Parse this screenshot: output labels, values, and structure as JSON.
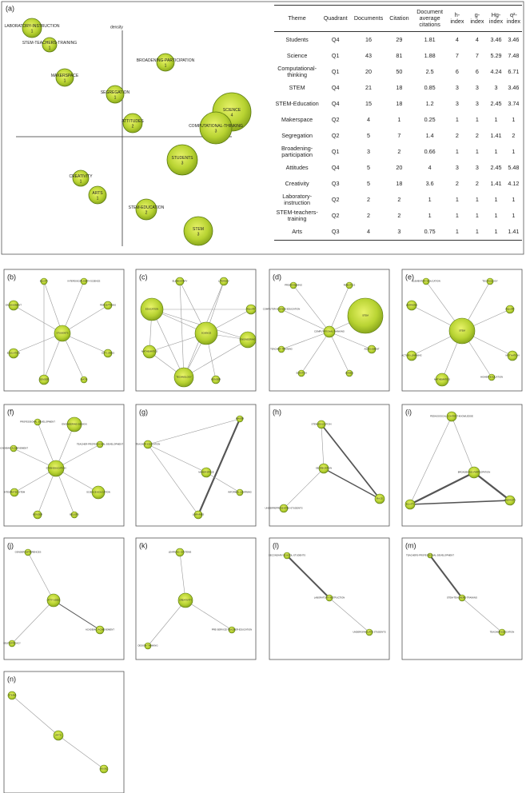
{
  "strategic_diagram": {
    "panel": "(a)",
    "axis_label": "density",
    "bubbles": [
      {
        "label": "LABORATORY-INSTRUCTION",
        "value": "1"
      },
      {
        "label": "STEM-TEACHERS-TRAINING",
        "value": "1"
      },
      {
        "label": "BROADENING-PARTICIPATION",
        "value": "1"
      },
      {
        "label": "MAKERSPACE",
        "value": "1"
      },
      {
        "label": "SEGREGATION",
        "value": "1"
      },
      {
        "label": "SCIENCE",
        "value": "4"
      },
      {
        "label": "COMPUTATIONAL-THINKING",
        "value": "3"
      },
      {
        "label": "ATTITUDES",
        "value": "2"
      },
      {
        "label": "STUDENTS",
        "value": "3"
      },
      {
        "label": "CREATIVITY",
        "value": "1"
      },
      {
        "label": "ARTS",
        "value": "1"
      },
      {
        "label": "STEM-EDUCATION",
        "value": "2"
      },
      {
        "label": "STEM",
        "value": "3"
      }
    ]
  },
  "table": {
    "header": [
      "Theme",
      "Quadrant",
      "Documents",
      "Citation",
      "Document average citations",
      "h-index",
      "g-index",
      "Hg-index",
      "q²-index"
    ],
    "rows": [
      [
        "Students",
        "Q4",
        16,
        29,
        1.81,
        4,
        4,
        3.46,
        3.46
      ],
      [
        "Science",
        "Q1",
        43,
        81,
        1.88,
        7,
        7,
        5.29,
        7.48
      ],
      [
        "Computational-thinking",
        "Q1",
        20,
        50,
        2.5,
        6,
        6,
        4.24,
        6.71
      ],
      [
        "STEM",
        "Q4",
        21,
        18,
        0.85,
        3,
        3,
        3,
        3.46
      ],
      [
        "STEM-Education",
        "Q4",
        15,
        18,
        1.2,
        3,
        3,
        2.45,
        3.74
      ],
      [
        "Makerspace",
        "Q2",
        4,
        1,
        0.25,
        1,
        1,
        1,
        1
      ],
      [
        "Segregation",
        "Q2",
        5,
        7,
        1.4,
        2,
        2,
        1.41,
        2
      ],
      [
        "Broadening-participation",
        "Q1",
        3,
        2,
        0.66,
        1,
        1,
        1,
        1
      ],
      [
        "Attitudes",
        "Q4",
        5,
        20,
        4,
        3,
        3,
        2.45,
        5.48
      ],
      [
        "Creativity",
        "Q3",
        5,
        18,
        3.6,
        2,
        2,
        1.41,
        4.12
      ],
      [
        "Laboratory-instruction",
        "Q2",
        2,
        2,
        1,
        1,
        1,
        1,
        1
      ],
      [
        "STEM-teachers-training",
        "Q2",
        2,
        2,
        1,
        1,
        1,
        1,
        1
      ],
      [
        "Arts",
        "Q3",
        4,
        3,
        0.75,
        1,
        1,
        1,
        1.41
      ]
    ]
  },
  "networks": [
    {
      "panel": "(b)",
      "nodes": [
        "STUDENTS",
        "EQUITY",
        "INTERDISCIPLINARY-SCIENCE",
        "ENGAGEMENT",
        "PERCEPTIONS",
        "EDUCATION",
        "OUTCOMES",
        "GENDER",
        "MATH"
      ]
    },
    {
      "panel": "(c)",
      "nodes": [
        "SCIENCE",
        "EDUCATION",
        "TECHNOLOGY",
        "ENGINEERING",
        "MATHEMATICS",
        "INQUIRY",
        "ELEMENTARY",
        "LITERACY",
        "GENDER"
      ]
    },
    {
      "panel": "(d)",
      "nodes": [
        "COMPUTATIONAL-THINKING",
        "STEM",
        "PROGRAMMING",
        "ROBOTICS",
        "COMPUTER-SCIENCE-EDUCATION",
        "TEACHER-TRAINING",
        "ASSESSMENT",
        "SCRATCH",
        "GAMES"
      ]
    },
    {
      "panel": "(e)",
      "nodes": [
        "STEM",
        "ELEMENTARY-EDUCATION",
        "TECHNOLOGY",
        "LEARNING",
        "INQUIRY",
        "ACTIVE-LEARNING",
        "MOTIVATION",
        "MATHEMATICS",
        "HIGHER-EDUCATION"
      ]
    },
    {
      "panel": "(f)",
      "nodes": [
        "STEM-EDUCATION",
        "PROFESSIONAL-DEVELOPMENT",
        "ENGINEERING-DESIGN",
        "TEACHER-PROFESSIONAL-DEVELOPMENT",
        "ACADEMIC-ACHIEVEMENT",
        "INTEGRATED-STEM",
        "SCIENCE-EDUCATION",
        "GENDER",
        "BELIEFS"
      ]
    },
    {
      "panel": "(g)",
      "nodes": [
        "MAKERSPACE",
        "MAKER",
        "TEACHER-EDUCATION",
        "INFORMAL-LEARNING",
        "LIBRARIES"
      ]
    },
    {
      "panel": "(h)",
      "nodes": [
        "SEGREGATION",
        "STEM-EDUCATION",
        "RACE",
        "UNDERREPRESENTED-STUDENTS"
      ]
    },
    {
      "panel": "(i)",
      "nodes": [
        "BROADENING-PARTICIPATION",
        "PEDAGOGICAL-CONTENT-KNOWLEDGE",
        "DIVERSITY",
        "EQUITY"
      ]
    },
    {
      "panel": "(j)",
      "nodes": [
        "ATTITUDES",
        "GENDER-DIFFERENCES",
        "ACADEMIC-ACHIEVEMENT",
        "SELF-EFFICACY"
      ]
    },
    {
      "panel": "(k)",
      "nodes": [
        "CREATIVITY",
        "LEARNING-SYSTEMS",
        "PRE-SERVICE-TEACHER-EDUCATION",
        "DESIGN-THINKING"
      ]
    },
    {
      "panel": "(l)",
      "nodes": [
        "SECONDARY-SCHOOL-STUDENTS",
        "LABORATORY-INSTRUCTION",
        "UNDERGRADUATE-STUDENTS"
      ]
    },
    {
      "panel": "(m)",
      "nodes": [
        "TEACHERS-PROFESSIONAL-DEVELOPMENT",
        "STEM-TEACHERS-TRAINING",
        "TEACHER-EDUCATION"
      ]
    },
    {
      "panel": "(n)",
      "nodes": [
        "STEAM",
        "ARTS",
        "MUSIC"
      ]
    }
  ]
}
